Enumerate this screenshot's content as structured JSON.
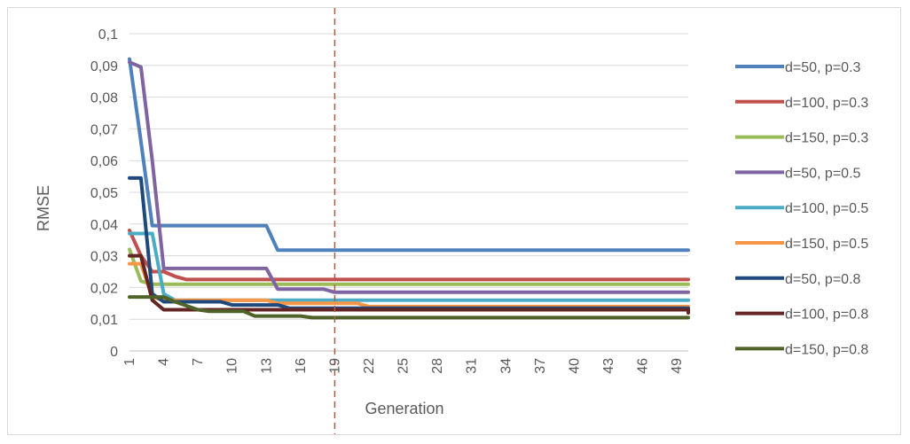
{
  "chart_data": {
    "type": "line",
    "title": "",
    "xlabel": "Generation",
    "ylabel": "RMSE",
    "xlim": [
      1,
      50
    ],
    "ylim": [
      0,
      0.1
    ],
    "x_tick_labels": [
      "1",
      "4",
      "7",
      "10",
      "13",
      "16",
      "19",
      "22",
      "25",
      "28",
      "31",
      "34",
      "37",
      "40",
      "43",
      "46",
      "49"
    ],
    "y_tick_labels": [
      "0",
      "0,01",
      "0,02",
      "0,03",
      "0,04",
      "0,05",
      "0,06",
      "0,07",
      "0,08",
      "0,09",
      "0,1"
    ],
    "grid": "horizontal",
    "legend_position": "right",
    "reference_line": {
      "x": 19,
      "style": "dashed",
      "color": "#c0504d"
    },
    "series": [
      {
        "name": "d=50, p=0.3",
        "color": "#4f81bd",
        "points": [
          [
            1,
            0.092
          ],
          [
            2,
            0.066
          ],
          [
            3,
            0.0395
          ],
          [
            13,
            0.0395
          ],
          [
            14,
            0.0318
          ],
          [
            50,
            0.0318
          ]
        ]
      },
      {
        "name": "d=100, p=0.3",
        "color": "#c0504d",
        "points": [
          [
            1,
            0.038
          ],
          [
            2,
            0.03
          ],
          [
            3,
            0.025
          ],
          [
            4,
            0.025
          ],
          [
            5,
            0.0235
          ],
          [
            6,
            0.0225
          ],
          [
            50,
            0.0225
          ]
        ]
      },
      {
        "name": "d=150, p=0.3",
        "color": "#9bbb59",
        "points": [
          [
            1,
            0.032
          ],
          [
            2,
            0.022
          ],
          [
            3,
            0.021
          ],
          [
            50,
            0.021
          ]
        ]
      },
      {
        "name": "d=50, p=0.5",
        "color": "#8064a2",
        "points": [
          [
            1,
            0.091
          ],
          [
            2,
            0.0895
          ],
          [
            3,
            0.06
          ],
          [
            4,
            0.026
          ],
          [
            13,
            0.026
          ],
          [
            14,
            0.0195
          ],
          [
            18,
            0.0195
          ],
          [
            19,
            0.0185
          ],
          [
            50,
            0.0185
          ]
        ]
      },
      {
        "name": "d=100, p=0.5",
        "color": "#4bacc6",
        "points": [
          [
            1,
            0.037
          ],
          [
            3,
            0.037
          ],
          [
            4,
            0.018
          ],
          [
            5,
            0.016
          ],
          [
            50,
            0.016
          ]
        ]
      },
      {
        "name": "d=150, p=0.5",
        "color": "#f79646",
        "points": [
          [
            1,
            0.0275
          ],
          [
            2,
            0.0275
          ],
          [
            3,
            0.017
          ],
          [
            4,
            0.016
          ],
          [
            13,
            0.016
          ],
          [
            14,
            0.015
          ],
          [
            21,
            0.015
          ],
          [
            22,
            0.014
          ],
          [
            50,
            0.014
          ]
        ]
      },
      {
        "name": "d=50, p=0.8",
        "color": "#1f497d",
        "points": [
          [
            1,
            0.0545
          ],
          [
            2,
            0.0545
          ],
          [
            3,
            0.018
          ],
          [
            4,
            0.0155
          ],
          [
            9,
            0.0155
          ],
          [
            10,
            0.0145
          ],
          [
            14,
            0.0145
          ],
          [
            15,
            0.0135
          ],
          [
            50,
            0.0135
          ]
        ]
      },
      {
        "name": "d=100, p=0.8",
        "color": "#632523",
        "points": [
          [
            1,
            0.03
          ],
          [
            2,
            0.03
          ],
          [
            3,
            0.016
          ],
          [
            4,
            0.013
          ],
          [
            50,
            0.013
          ],
          [
            50,
            0.012
          ]
        ]
      },
      {
        "name": "d=150, p=0.8",
        "color": "#4f6228",
        "points": [
          [
            1,
            0.017
          ],
          [
            4,
            0.017
          ],
          [
            5,
            0.0155
          ],
          [
            7,
            0.013
          ],
          [
            8,
            0.0125
          ],
          [
            11,
            0.0125
          ],
          [
            12,
            0.011
          ],
          [
            16,
            0.011
          ],
          [
            17,
            0.0105
          ],
          [
            50,
            0.0105
          ]
        ]
      }
    ]
  }
}
